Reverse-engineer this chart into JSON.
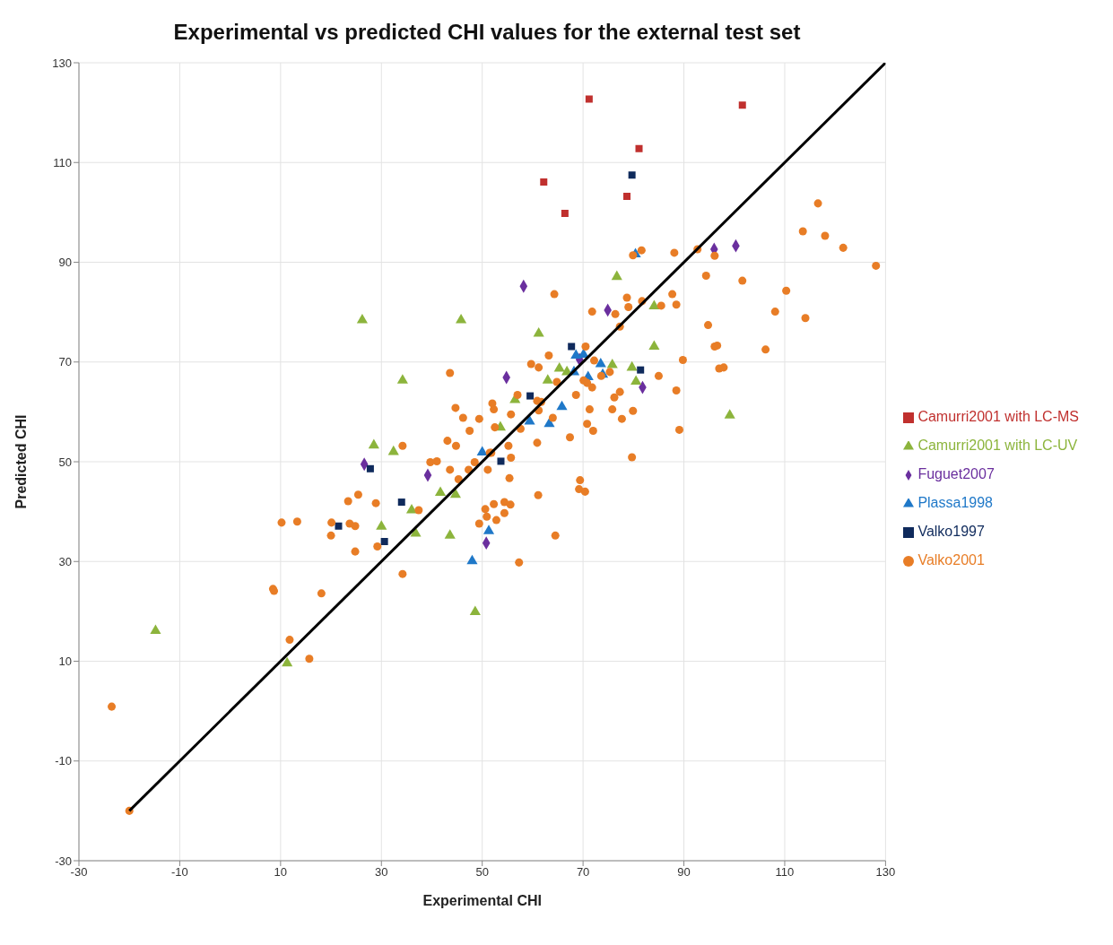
{
  "chart_data": {
    "type": "scatter",
    "title": "Experimental vs predicted CHI values for the external test set",
    "xlabel": "Experimental CHI",
    "ylabel": "Predicted CHI",
    "xlim": [
      -30,
      130
    ],
    "xticks": [
      -30,
      -10,
      10,
      30,
      50,
      70,
      90,
      110,
      130
    ],
    "ylim": [
      -30,
      130
    ],
    "yticks": [
      -30,
      -10,
      10,
      30,
      50,
      70,
      90,
      110,
      130
    ],
    "grid": true,
    "legend": "right",
    "series": [
      {
        "name": "Fuguet2007",
        "color": "#6a2f9e",
        "marker": "diamond",
        "x": [
          58.2,
          54.8,
          74.9,
          26.6,
          39.2,
          50.8,
          81.8,
          96.0,
          100.3,
          69.3
        ],
        "values": [
          85.2,
          66.9,
          80.4,
          49.5,
          47.3,
          33.7,
          64.9,
          92.6,
          93.3,
          70.5
        ]
      },
      {
        "name": "Camurri2001 with LC-MS",
        "color": "#c0302e",
        "marker": "square",
        "x": [
          71.2,
          101.6,
          81.1,
          62.2,
          78.7,
          66.4
        ],
        "values": [
          122.7,
          121.5,
          112.8,
          106.1,
          103.2,
          99.8
        ]
      },
      {
        "name": "Camurri2001 with LC-UV",
        "color": "#8cb43c",
        "marker": "triangle",
        "x": [
          26.2,
          45.8,
          34.2,
          28.5,
          32.4,
          30,
          36,
          36.8,
          41.7,
          44.7,
          43.6,
          48.6,
          -14.8,
          11.3,
          53.6,
          76.7,
          61.2,
          84.1,
          84.1,
          65.3,
          66.8,
          63.0,
          75.8,
          79.7,
          80.5,
          56.5,
          99.1
        ],
        "values": [
          78.4,
          78.4,
          66.3,
          53.3,
          52,
          37,
          40.3,
          35.6,
          43.8,
          43.4,
          35.2,
          19.9,
          16.1,
          9.6,
          56.9,
          87.1,
          75.7,
          81.2,
          73.1,
          68.7,
          68.0,
          66.3,
          69.4,
          68.9,
          66.1,
          62.4,
          59.3
        ]
      },
      {
        "name": "Plassa1998",
        "color": "#1f78c8",
        "marker": "triangle",
        "x": [
          48.0,
          51.3,
          50,
          59.4,
          63.3,
          65.8,
          68.2,
          68.6,
          70.1,
          73.5,
          73.9,
          71.0,
          80.4
        ],
        "values": [
          30.1,
          36.1,
          51.9,
          58.1,
          57.6,
          61.0,
          68.0,
          71.3,
          71.5,
          69.6,
          67.5,
          67.0,
          91.6
        ]
      },
      {
        "name": "Valko1997",
        "color": "#0f2a5c",
        "marker": "square",
        "x": [
          27.8,
          21.5,
          34,
          30.6,
          53.7,
          59.5,
          67.7,
          81.4,
          79.7
        ],
        "values": [
          48.6,
          37.1,
          41.9,
          34.0,
          50.1,
          63.2,
          73.1,
          68.4,
          107.5
        ]
      },
      {
        "name": "Valko2001",
        "color": "#e87d26",
        "marker": "circle",
        "x": [
          43.6,
          44.7,
          46.2,
          49.4,
          47.5,
          52.0,
          52.3,
          52.5,
          55.7,
          43.1,
          44.8,
          34.2,
          39.7,
          41.0,
          43.6,
          45.3,
          47.3,
          48.5,
          51.1,
          51.5,
          51.8,
          55.4,
          25.4,
          23.4,
          28.9,
          37.4,
          20.1,
          23.7,
          24.8,
          10.2,
          13.3,
          20.0,
          24.8,
          29.2,
          34.2,
          8.5,
          8.7,
          18.1,
          50.6,
          52.3,
          50.9,
          49.4,
          52.8,
          54.4,
          54.4,
          55.6,
          55.2,
          55.7,
          64.3,
          71.8,
          78.7,
          79.0,
          81.7,
          76.4,
          77.3,
          85.5,
          87.7,
          88.5,
          94.4,
          94.8,
          96.6,
          96.1,
          89.8,
          97.0,
          85.0,
          88.5,
          89.1,
          79.9,
          77.7,
          75.8,
          76.2,
          77.3,
          75.3,
          73.6,
          72.2,
          70.5,
          63.2,
          59.7,
          61.2,
          64.8,
          68.6,
          70.1,
          70.8,
          71.8,
          71.3,
          70.8,
          72.0,
          67.4,
          64.0,
          60.9,
          61.7,
          61.2,
          57.0,
          57.6,
          60.9,
          61.1,
          69.4,
          69.2,
          70.4,
          79.7,
          64.5,
          57.3,
          116.6,
          113.6,
          118.0,
          121.6,
          128.1,
          81.6,
          79.9,
          88.1,
          92.7,
          96.1,
          101.6,
          110.3,
          108.1,
          114.1,
          106.2,
          97.9,
          -23.5,
          11.8,
          15.7,
          -20
        ],
        "values": [
          67.8,
          60.8,
          58.8,
          58.6,
          56.2,
          61.7,
          60.5,
          56.9,
          59.5,
          54.2,
          53.2,
          53.2,
          49.9,
          50.1,
          48.4,
          46.5,
          48.4,
          49.9,
          48.4,
          51.8,
          51.8,
          46.7,
          43.4,
          42.1,
          41.7,
          40.3,
          37.8,
          37.6,
          37.1,
          37.8,
          38.0,
          35.2,
          32.0,
          33.0,
          27.5,
          24.5,
          24.1,
          23.6,
          40.5,
          41.5,
          39.0,
          37.6,
          38.3,
          39.7,
          41.9,
          41.4,
          53.2,
          50.8,
          83.6,
          80.1,
          82.9,
          81.0,
          82.2,
          79.6,
          77.1,
          81.3,
          83.6,
          81.5,
          87.3,
          77.4,
          73.3,
          73.1,
          70.4,
          68.7,
          67.2,
          64.3,
          56.4,
          60.2,
          58.6,
          60.5,
          62.9,
          64.0,
          68.0,
          67.2,
          70.3,
          73.1,
          71.3,
          69.6,
          68.9,
          66.0,
          63.4,
          66.3,
          65.8,
          64.9,
          60.5,
          57.6,
          56.2,
          54.9,
          58.8,
          62.2,
          62.0,
          60.3,
          63.4,
          56.6,
          53.8,
          43.3,
          46.3,
          44.5,
          44.0,
          50.9,
          35.2,
          29.8,
          101.8,
          96.2,
          95.3,
          92.9,
          89.3,
          92.4,
          91.4,
          91.9,
          92.6,
          91.3,
          86.3,
          84.3,
          80.1,
          78.8,
          72.5,
          68.9,
          0.9,
          14.3,
          10.5,
          -20
        ]
      },
      {
        "type": "line",
        "color": "#000000",
        "x": [
          -20,
          130
        ],
        "values": [
          -20,
          130
        ]
      }
    ]
  }
}
